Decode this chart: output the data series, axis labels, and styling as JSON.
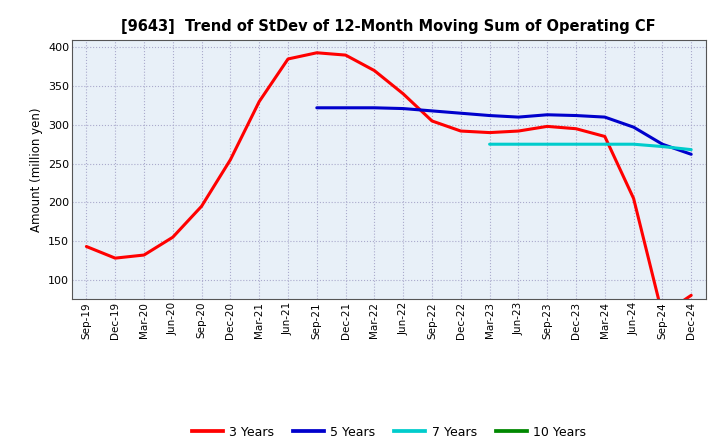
{
  "title": "[9643]  Trend of StDev of 12-Month Moving Sum of Operating CF",
  "ylabel": "Amount (million yen)",
  "ylim": [
    75,
    410
  ],
  "yticks": [
    100,
    150,
    200,
    250,
    300,
    350,
    400
  ],
  "plot_bg_color": "#E8F0F8",
  "figure_bg_color": "#FFFFFF",
  "grid_color": "#AAAACC",
  "legend_entries": [
    "3 Years",
    "5 Years",
    "7 Years",
    "10 Years"
  ],
  "legend_colors": [
    "#FF0000",
    "#0000CC",
    "#00CCCC",
    "#008800"
  ],
  "x_labels": [
    "Sep-19",
    "Dec-19",
    "Mar-20",
    "Jun-20",
    "Sep-20",
    "Dec-20",
    "Mar-21",
    "Jun-21",
    "Sep-21",
    "Dec-21",
    "Mar-22",
    "Jun-22",
    "Sep-22",
    "Dec-22",
    "Mar-23",
    "Jun-23",
    "Sep-23",
    "Dec-23",
    "Mar-24",
    "Jun-24",
    "Sep-24",
    "Dec-24"
  ],
  "series_3yr": {
    "x_indices": [
      0,
      1,
      2,
      3,
      4,
      5,
      6,
      7,
      8,
      9,
      10,
      11,
      12,
      13,
      14,
      15,
      16,
      17,
      18,
      19,
      20,
      21
    ],
    "y": [
      143,
      128,
      132,
      155,
      195,
      255,
      330,
      385,
      393,
      390,
      370,
      340,
      305,
      292,
      290,
      292,
      298,
      295,
      285,
      205,
      55,
      80
    ]
  },
  "series_5yr": {
    "x_indices": [
      8,
      9,
      10,
      11,
      12,
      13,
      14,
      15,
      16,
      17,
      18,
      19,
      20,
      21
    ],
    "y": [
      322,
      322,
      322,
      321,
      318,
      315,
      312,
      310,
      313,
      312,
      310,
      297,
      275,
      262
    ]
  },
  "series_7yr": {
    "x_indices": [
      14,
      15,
      16,
      17,
      18,
      19,
      20,
      21
    ],
    "y": [
      275,
      275,
      275,
      275,
      275,
      275,
      272,
      268
    ]
  },
  "series_10yr": {
    "x_indices": [],
    "y": []
  },
  "line_width": 2.2
}
